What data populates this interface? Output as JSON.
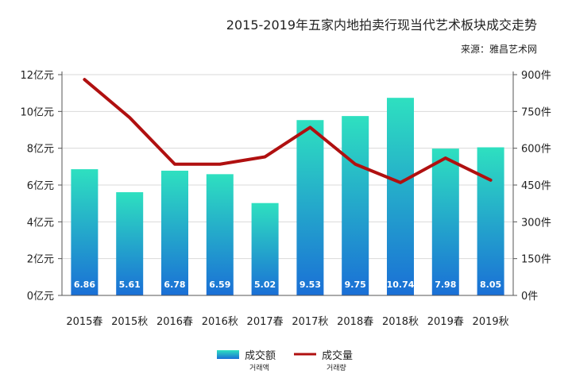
{
  "chart_data": {
    "type": "bar",
    "title": "2015-2019年五家内地拍卖行现当代艺术板块成交走势",
    "subtitle": "来源：雅昌艺术网",
    "categories": [
      "2015春",
      "2015秋",
      "2016春",
      "2016秋",
      "2017春",
      "2017秋",
      "2018春",
      "2018秋",
      "2019春",
      "2019秋"
    ],
    "series": [
      {
        "name": "成交额",
        "sub_label": "거래액",
        "type": "bar",
        "axis": "left",
        "values": [
          6.86,
          5.61,
          6.78,
          6.59,
          5.02,
          9.53,
          9.75,
          10.74,
          7.98,
          8.05
        ],
        "value_labels": [
          "6.86",
          "5.61",
          "6.78",
          "6.59",
          "5.02",
          "9.53",
          "9.75",
          "10.74",
          "7.98",
          "8.05"
        ],
        "color_top": "#2ee0c0",
        "color_bottom": "#1a6fd6"
      },
      {
        "name": "成交量",
        "sub_label": "거래량",
        "type": "line",
        "axis": "right",
        "values": [
          880,
          725,
          535,
          535,
          565,
          685,
          535,
          460,
          560,
          470
        ],
        "color": "#b01010"
      }
    ],
    "y_left": {
      "min": 0,
      "max": 12,
      "ticks": [
        0,
        2,
        4,
        6,
        8,
        10,
        12
      ],
      "tick_labels": [
        "0亿元",
        "2亿元",
        "4亿元",
        "6亿元",
        "8亿元",
        "10亿元",
        "12亿元"
      ]
    },
    "y_right": {
      "min": 0,
      "max": 900,
      "ticks": [
        0,
        150,
        300,
        450,
        600,
        750,
        900
      ],
      "tick_labels": [
        "0件",
        "150件",
        "300件",
        "450件",
        "600件",
        "750件",
        "900件"
      ]
    },
    "grid": true,
    "legend_position": "bottom"
  }
}
